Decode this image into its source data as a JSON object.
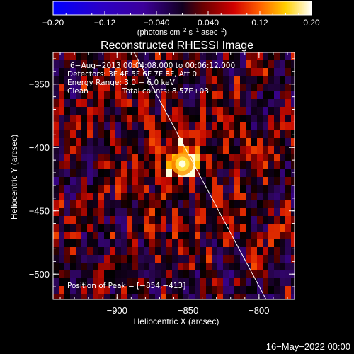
{
  "chart_data": {
    "type": "heatmap",
    "title": "Reconstructed RHESSI Image",
    "xlabel": "Heliocentric X (arcsec)",
    "ylabel": "Heliocentric Y (arcsec)",
    "xlim": [
      -945,
      -775
    ],
    "ylim": [
      -520,
      -325
    ],
    "x_ticks": [
      {
        "value": -900,
        "label": "−900"
      },
      {
        "value": -850,
        "label": "−850"
      },
      {
        "value": -800,
        "label": "−800"
      }
    ],
    "y_ticks": [
      {
        "value": -350,
        "label": "−350"
      },
      {
        "value": -400,
        "label": "−400"
      },
      {
        "value": -450,
        "label": "−450"
      },
      {
        "value": -500,
        "label": "−500"
      }
    ],
    "colorbar": {
      "range": [
        -0.2,
        0.2
      ],
      "ticks": [
        {
          "value": -0.2,
          "label": "−0.20"
        },
        {
          "value": -0.12,
          "label": "−0.12"
        },
        {
          "value": -0.04,
          "label": "−0.040"
        },
        {
          "value": 0.04,
          "label": "0.040"
        },
        {
          "value": 0.12,
          "label": "0.12"
        },
        {
          "value": 0.2,
          "label": "0.20"
        }
      ],
      "unit_main": "(photons cm",
      "unit_sup1": "−2",
      "unit_mid1": " s",
      "unit_sup2": "−1",
      "unit_mid2": " asec",
      "unit_sup3": "−2",
      "unit_end": ")"
    },
    "peak": {
      "x": -854,
      "y": -413
    },
    "limb_line": [
      {
        "x": -888,
        "y": -325
      },
      {
        "x": -795,
        "y": -520
      }
    ],
    "annotations": [
      "6−Aug−2013 00:04:08.000 to 00:06:12.000",
      "Detectors: 3F 4F 5F 6F 7F 8F, Att 0",
      "Energy Range: 3.0 − 6.0 keV",
      "Clean",
      "Total counts: 8.57E+03"
    ],
    "peak_label": "Position of Peak = [−854,−413]"
  },
  "footer": {
    "date": "16−May−2022 00:00"
  },
  "colors": {
    "background": "#000000",
    "axes": "#ffffff",
    "colormap": [
      "#0000ff",
      "#3c009a",
      "#2a0c44",
      "#000000",
      "#7a0000",
      "#ff1e00",
      "#ffa000",
      "#ffff66",
      "#ffffff"
    ]
  }
}
